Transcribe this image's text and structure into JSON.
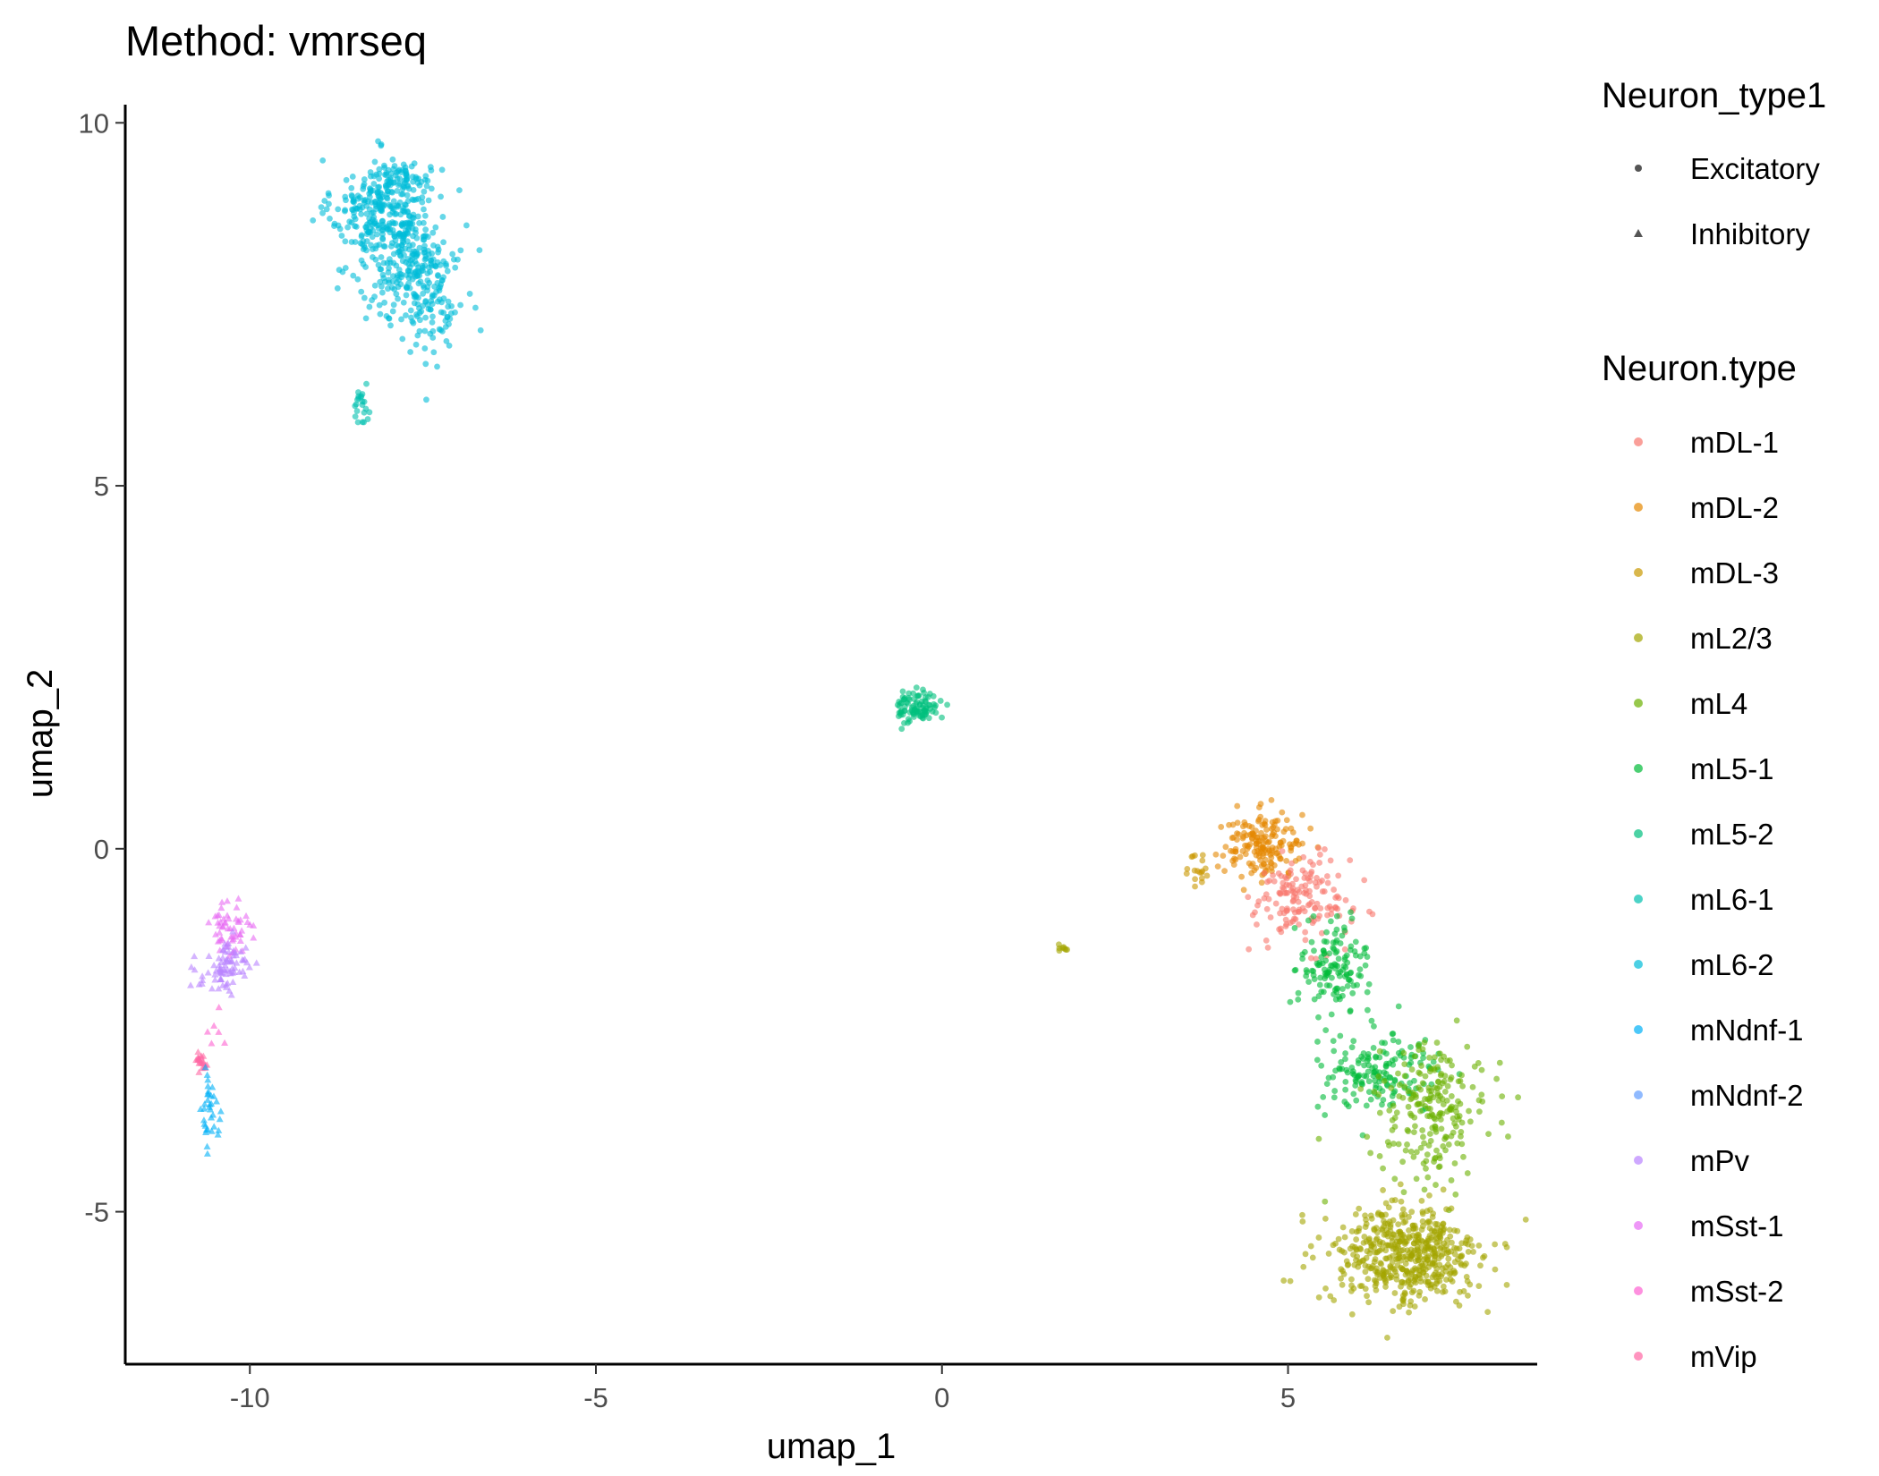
{
  "chart_data": {
    "type": "scatter",
    "title": "Method: vmrseq",
    "xlabel": "umap_1",
    "ylabel": "umap_2",
    "xlim": [
      -11.8,
      8.6
    ],
    "ylim": [
      -7.1,
      10.25
    ],
    "x_ticks": [
      -10,
      -5,
      0,
      5
    ],
    "x_tick_labels": [
      "-10",
      "-5",
      "0",
      "5"
    ],
    "y_ticks": [
      -5,
      0,
      5,
      10
    ],
    "y_tick_labels": [
      "-5",
      "0",
      "5",
      "10"
    ],
    "grid": false,
    "legend_position": "right",
    "shape_legend": {
      "title": "Neuron_type1",
      "entries": [
        {
          "label": "Excitatory",
          "shape": "circle"
        },
        {
          "label": "Inhibitory",
          "shape": "triangle"
        }
      ]
    },
    "color_legend": {
      "title": "Neuron.type",
      "entries": [
        {
          "label": "mDL-1",
          "color": "#F8766D"
        },
        {
          "label": "mDL-2",
          "color": "#E58700"
        },
        {
          "label": "mDL-3",
          "color": "#C99800"
        },
        {
          "label": "mL2/3",
          "color": "#A3A500"
        },
        {
          "label": "mL4",
          "color": "#6BB100"
        },
        {
          "label": "mL5-1",
          "color": "#00BA38"
        },
        {
          "label": "mL5-2",
          "color": "#00BF7D"
        },
        {
          "label": "mL6-1",
          "color": "#00C0AF"
        },
        {
          "label": "mL6-2",
          "color": "#00BCD8"
        },
        {
          "label": "mNdnf-1",
          "color": "#00B0F6"
        },
        {
          "label": "mNdnf-2",
          "color": "#619CFF"
        },
        {
          "label": "mPv",
          "color": "#B983FF"
        },
        {
          "label": "mSst-1",
          "color": "#E76BF3"
        },
        {
          "label": "mSst-2",
          "color": "#FD61D1"
        },
        {
          "label": "mVip",
          "color": "#FF67A4"
        }
      ]
    },
    "clusters": [
      {
        "type": "mL6-2",
        "shape": "circle",
        "n": 260,
        "cx": -8.1,
        "cy": 8.8,
        "sx": 0.35,
        "sy": 0.35
      },
      {
        "type": "mL6-2",
        "shape": "circle",
        "n": 220,
        "cx": -7.7,
        "cy": 8.1,
        "sx": 0.4,
        "sy": 0.45
      },
      {
        "type": "mL6-2",
        "shape": "circle",
        "n": 90,
        "cx": -7.4,
        "cy": 7.5,
        "sx": 0.25,
        "sy": 0.4
      },
      {
        "type": "mL6-2",
        "shape": "circle",
        "n": 50,
        "cx": -7.8,
        "cy": 9.25,
        "sx": 0.2,
        "sy": 0.1
      },
      {
        "type": "mL6-1",
        "shape": "circle",
        "n": 22,
        "cx": -8.4,
        "cy": 6.1,
        "sx": 0.06,
        "sy": 0.12
      },
      {
        "type": "mL5-2",
        "shape": "circle",
        "n": 95,
        "cx": -0.35,
        "cy": 1.95,
        "sx": 0.15,
        "sy": 0.12
      },
      {
        "type": "mDL-3",
        "shape": "circle",
        "n": 18,
        "cx": 3.7,
        "cy": -0.3,
        "sx": 0.08,
        "sy": 0.12
      },
      {
        "type": "mL2/3",
        "shape": "circle",
        "n": 8,
        "cx": 1.75,
        "cy": -1.35,
        "sx": 0.05,
        "sy": 0.04
      },
      {
        "type": "mDL-2",
        "shape": "circle",
        "n": 170,
        "cx": 4.65,
        "cy": 0.05,
        "sx": 0.3,
        "sy": 0.22
      },
      {
        "type": "mDL-1",
        "shape": "circle",
        "n": 150,
        "cx": 5.2,
        "cy": -0.7,
        "sx": 0.35,
        "sy": 0.3
      },
      {
        "type": "mL5-1",
        "shape": "circle",
        "n": 130,
        "cx": 5.65,
        "cy": -1.6,
        "sx": 0.25,
        "sy": 0.3
      },
      {
        "type": "mL5-1",
        "shape": "circle",
        "n": 160,
        "cx": 6.3,
        "cy": -3.1,
        "sx": 0.45,
        "sy": 0.28
      },
      {
        "type": "mL4",
        "shape": "circle",
        "n": 220,
        "cx": 7.1,
        "cy": -3.6,
        "sx": 0.4,
        "sy": 0.45
      },
      {
        "type": "mL2/3",
        "shape": "circle",
        "n": 520,
        "cx": 6.7,
        "cy": -5.6,
        "sx": 0.55,
        "sy": 0.35
      },
      {
        "type": "mSst-1",
        "shape": "triangle",
        "n": 55,
        "cx": -10.3,
        "cy": -1.1,
        "sx": 0.15,
        "sy": 0.2
      },
      {
        "type": "mPv",
        "shape": "triangle",
        "n": 80,
        "cx": -10.35,
        "cy": -1.65,
        "sx": 0.2,
        "sy": 0.18
      },
      {
        "type": "mVip",
        "shape": "triangle",
        "n": 22,
        "cx": -10.7,
        "cy": -2.95,
        "sx": 0.05,
        "sy": 0.07
      },
      {
        "type": "mNdnf-1",
        "shape": "triangle",
        "n": 35,
        "cx": -10.55,
        "cy": -3.65,
        "sx": 0.07,
        "sy": 0.25
      },
      {
        "type": "mSst-2",
        "shape": "triangle",
        "n": 6,
        "cx": -10.45,
        "cy": -2.5,
        "sx": 0.08,
        "sy": 0.15
      }
    ]
  }
}
